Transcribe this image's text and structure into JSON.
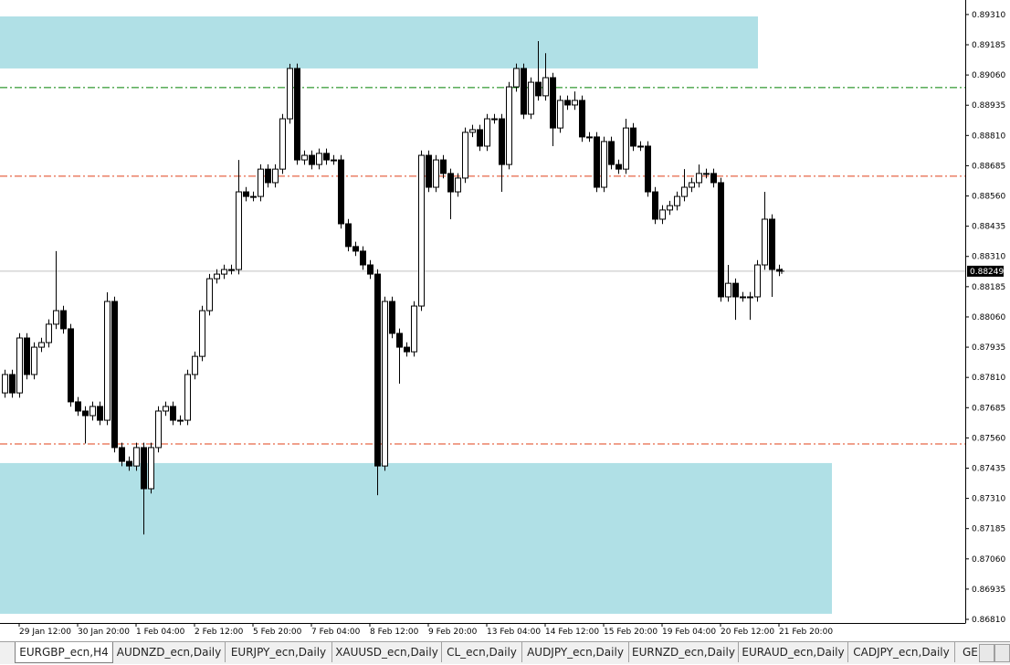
{
  "chart_data": {
    "type": "candlestick",
    "ylim": [
      0.86795,
      0.8937
    ],
    "yticks": [
      {
        "value": 0.8931,
        "label": "0.89310"
      },
      0.89185,
      {
        "value": 0.8906,
        "label": "0.89060"
      },
      0.88935,
      {
        "value": 0.8881,
        "label": "0.88810"
      },
      0.88685,
      {
        "value": 0.8856,
        "label": "0.88560"
      },
      0.88435,
      {
        "value": 0.8831,
        "label": "0.88310"
      },
      0.88185,
      {
        "value": 0.8806,
        "label": "0.88060"
      },
      0.87935,
      {
        "value": 0.8781,
        "label": "0.87810"
      },
      0.87685,
      {
        "value": 0.8756,
        "label": "0.87560"
      },
      0.87435,
      {
        "value": 0.8731,
        "label": "0.87310"
      },
      0.87185,
      {
        "value": 0.8706,
        "label": "0.87060"
      },
      0.86935,
      {
        "value": 0.8681,
        "label": "0.86810"
      }
    ],
    "categories": [
      null,
      null,
      "29 Jan 12:00",
      null,
      null,
      null,
      null,
      null,
      null,
      null,
      "30 Jan 20:00",
      null,
      null,
      null,
      null,
      null,
      null,
      null,
      "1 Feb 04:00",
      null,
      null,
      null,
      null,
      null,
      null,
      null,
      "2 Feb 12:00",
      null,
      null,
      null,
      null,
      null,
      null,
      null,
      "5 Feb 20:00",
      null,
      null,
      null,
      null,
      null,
      null,
      null,
      "7 Feb 04:00",
      null,
      null,
      null,
      null,
      null,
      null,
      null,
      "8 Feb 12:00",
      null,
      null,
      null,
      null,
      null,
      null,
      null,
      "9 Feb 20:00",
      null,
      null,
      null,
      null,
      null,
      null,
      null,
      "13 Feb 04:00",
      null,
      null,
      null,
      null,
      null,
      null,
      null,
      "14 Feb 12:00",
      null,
      null,
      null,
      null,
      null,
      null,
      null,
      "15 Feb 20:00",
      null,
      null,
      null,
      null,
      null,
      null,
      null,
      "19 Feb 04:00",
      null,
      null,
      null,
      null,
      null,
      null,
      null,
      "20 Feb 12:00",
      null,
      null,
      null,
      null,
      null,
      null,
      null,
      "21 Feb 20:00"
    ],
    "open": [
      0.87746,
      0.87822,
      0.87746,
      0.87973,
      0.87822,
      0.87935,
      0.87954,
      0.8803,
      0.88086,
      0.88011,
      0.87709,
      0.87671,
      0.87652,
      0.8769,
      0.87633,
      0.88124,
      0.8752,
      0.87463,
      0.87444,
      0.8752,
      0.8735,
      0.8752,
      0.87671,
      0.8769,
      0.87633,
      0.87633,
      0.87822,
      0.87897,
      0.88086,
      0.88218,
      0.88237,
      0.88256,
      0.88256,
      0.88577,
      0.88558,
      0.88558,
      0.88671,
      0.88615,
      0.88671,
      0.88879,
      0.89087,
      0.88709,
      0.88728,
      0.8869,
      0.88736,
      0.88709,
      0.88709,
      0.88445,
      0.88351,
      0.88332,
      0.88275,
      0.88237,
      0.87444,
      0.88124,
      0.87992,
      0.87935,
      0.87916,
      0.88105,
      0.88728,
      0.88596,
      0.88709,
      0.88653,
      0.88577,
      0.88634,
      0.88823,
      0.88834,
      0.88766,
      0.88879,
      0.88879,
      0.8869,
      0.89011,
      0.89087,
      0.88898,
      0.8903,
      0.88974,
      0.89049,
      0.88841,
      0.88955,
      0.88936,
      0.88955,
      0.88804,
      0.88804,
      0.88596,
      0.88785,
      0.8869,
      0.88671,
      0.88841,
      0.88766,
      0.88766,
      0.88577,
      0.88464,
      0.88502,
      0.8852,
      0.88558,
      0.88596,
      0.88615,
      0.88653,
      0.88653,
      0.88615,
      0.88143,
      0.88199,
      0.88143,
      0.88143,
      0.88143,
      0.88275,
      0.88464,
      0.88256
    ],
    "high": [
      0.87842,
      0.87842,
      0.87993,
      0.87993,
      0.87955,
      0.87974,
      0.8805,
      0.88332,
      0.88106,
      0.88031,
      0.87729,
      0.87691,
      0.8771,
      0.8771,
      0.88162,
      0.88144,
      0.8754,
      0.87483,
      0.8754,
      0.8754,
      0.8754,
      0.87691,
      0.8771,
      0.8771,
      0.87653,
      0.87842,
      0.87917,
      0.88106,
      0.88238,
      0.88257,
      0.88276,
      0.88276,
      0.88709,
      0.88597,
      0.88578,
      0.88691,
      0.88691,
      0.88691,
      0.88899,
      0.89106,
      0.89107,
      0.88748,
      0.88748,
      0.88756,
      0.88756,
      0.88729,
      0.88729,
      0.88465,
      0.88371,
      0.88352,
      0.88295,
      0.88257,
      0.88144,
      0.88144,
      0.88012,
      0.87955,
      0.88125,
      0.88748,
      0.88748,
      0.88729,
      0.88729,
      0.88673,
      0.88654,
      0.88843,
      0.88854,
      0.88854,
      0.88899,
      0.88899,
      0.88899,
      0.89031,
      0.89107,
      0.89107,
      0.8905,
      0.892,
      0.8915,
      0.89069,
      0.88975,
      0.88975,
      0.88992,
      0.88975,
      0.88824,
      0.88824,
      0.88805,
      0.88805,
      0.8871,
      0.88879,
      0.88861,
      0.88786,
      0.88786,
      0.88597,
      0.88522,
      0.8854,
      0.88578,
      0.88671,
      0.88635,
      0.8869,
      0.88673,
      0.88673,
      0.88635,
      0.88275,
      0.88219,
      0.88163,
      0.88163,
      0.88295,
      0.88577,
      0.88484,
      0.88276
    ],
    "low": [
      0.87726,
      0.87726,
      0.87726,
      0.87802,
      0.87802,
      0.87915,
      0.87934,
      0.8801,
      0.87991,
      0.87689,
      0.87651,
      0.87537,
      0.87632,
      0.87613,
      0.87613,
      0.875,
      0.87443,
      0.87424,
      0.87424,
      0.87161,
      0.8733,
      0.875,
      0.87651,
      0.87613,
      0.87613,
      0.87613,
      0.87802,
      0.87877,
      0.88066,
      0.88198,
      0.88217,
      0.88236,
      0.88236,
      0.88538,
      0.88538,
      0.88538,
      0.88595,
      0.88595,
      0.88651,
      0.88859,
      0.88689,
      0.88689,
      0.8867,
      0.8867,
      0.88689,
      0.88689,
      0.88425,
      0.88331,
      0.88312,
      0.88255,
      0.88217,
      0.87323,
      0.87424,
      0.87972,
      0.87784,
      0.87896,
      0.87896,
      0.88085,
      0.88576,
      0.88576,
      0.88633,
      0.88464,
      0.88557,
      0.88614,
      0.88803,
      0.88746,
      0.88746,
      0.88859,
      0.88577,
      0.8867,
      0.88991,
      0.88878,
      0.88878,
      0.88954,
      0.88954,
      0.88766,
      0.88821,
      0.88916,
      0.88916,
      0.88784,
      0.88784,
      0.88576,
      0.88576,
      0.8867,
      0.88651,
      0.88651,
      0.88746,
      0.88746,
      0.88557,
      0.88444,
      0.88444,
      0.88482,
      0.885,
      0.88538,
      0.88576,
      0.88595,
      0.88633,
      0.88595,
      0.88123,
      0.88123,
      0.88048,
      0.88123,
      0.88048,
      0.88123,
      0.88255,
      0.88143,
      0.88229
    ],
    "close": [
      0.87822,
      0.87746,
      0.87973,
      0.87822,
      0.87935,
      0.87954,
      0.8803,
      0.88086,
      0.88011,
      0.87709,
      0.87671,
      0.87652,
      0.8769,
      0.87633,
      0.88124,
      0.8752,
      0.87463,
      0.87444,
      0.8752,
      0.8735,
      0.8752,
      0.87671,
      0.8769,
      0.87633,
      0.87633,
      0.87822,
      0.87897,
      0.88086,
      0.88218,
      0.88237,
      0.88256,
      0.88256,
      0.88577,
      0.88558,
      0.88558,
      0.88671,
      0.88615,
      0.88671,
      0.88879,
      0.89087,
      0.88709,
      0.88728,
      0.8869,
      0.88736,
      0.88709,
      0.88709,
      0.88445,
      0.88351,
      0.88332,
      0.88275,
      0.88237,
      0.87444,
      0.88124,
      0.87992,
      0.87935,
      0.87916,
      0.88105,
      0.88728,
      0.88596,
      0.88709,
      0.88653,
      0.88577,
      0.88634,
      0.88823,
      0.88834,
      0.88766,
      0.88879,
      0.88879,
      0.8869,
      0.89011,
      0.89087,
      0.88898,
      0.8903,
      0.88974,
      0.89049,
      0.88841,
      0.88955,
      0.88936,
      0.88955,
      0.88804,
      0.88804,
      0.88596,
      0.88785,
      0.8869,
      0.88671,
      0.88841,
      0.88766,
      0.88766,
      0.88577,
      0.88464,
      0.88502,
      0.8852,
      0.88558,
      0.88596,
      0.88615,
      0.88653,
      0.88653,
      0.88615,
      0.88143,
      0.88199,
      0.88143,
      0.88143,
      0.88143,
      0.88275,
      0.88464,
      0.88256,
      0.88249
    ],
    "current_price": 0.88249,
    "levels": [
      {
        "value": 0.89008,
        "color": "#008000"
      },
      {
        "value": 0.88642,
        "color": "#e0401a"
      },
      {
        "value": 0.87535,
        "color": "#e0401a"
      }
    ],
    "zones": [
      {
        "from": 0.89087,
        "to": 0.89302,
        "color": "#b0e0e6"
      },
      {
        "from": 0.86833,
        "to": 0.87456,
        "color": "#b0e0e6"
      }
    ]
  },
  "tabs": [
    "EURGBP_ecn,H4",
    "AUDNZD_ecn,Daily",
    "EURJPY_ecn,Daily",
    "XAUUSD_ecn,Daily",
    "CL_ecn,Daily",
    "AUDJPY_ecn,Daily",
    "EURNZD_ecn,Daily",
    "EURAUD_ecn,Daily",
    "CADJPY_ecn,Daily",
    "GE"
  ]
}
